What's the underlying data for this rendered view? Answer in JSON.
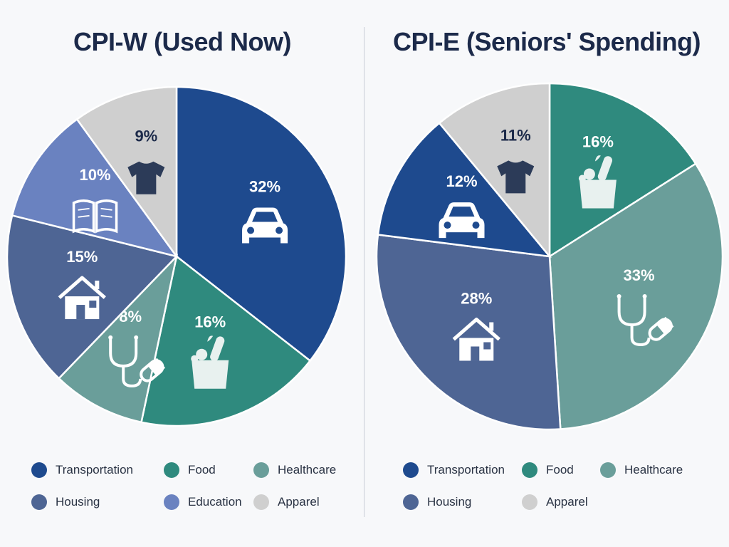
{
  "colors": {
    "Transportation": "#1e4a8e",
    "Food": "#2f8a7e",
    "Healthcare": "#6a9e9a",
    "Housing": "#4e6594",
    "Education": "#6a82c0",
    "Apparel": "#cfcfcf"
  },
  "chart_data": [
    {
      "type": "pie",
      "title": "CPI-W (Used Now)",
      "slices": [
        {
          "name": "Transportation",
          "value": 32,
          "label": "32%",
          "icon": "car-icon"
        },
        {
          "name": "Food",
          "value": 16,
          "label": "16%",
          "icon": "grocery-bag-icon"
        },
        {
          "name": "Healthcare",
          "value": 8,
          "label": "8%",
          "icon": "stethoscope-pill-icon"
        },
        {
          "name": "Housing",
          "value": 15,
          "label": "15%",
          "icon": "house-icon"
        },
        {
          "name": "Education",
          "value": 10,
          "label": "10%",
          "icon": "book-icon"
        },
        {
          "name": "Apparel",
          "value": 9,
          "label": "9%",
          "icon": "tshirt-icon"
        }
      ],
      "legend": [
        "Transportation",
        "Food",
        "Healthcare",
        "Housing",
        "Education",
        "Apparel"
      ],
      "legend_position": "bottom"
    },
    {
      "type": "pie",
      "title": "CPI-E (Seniors' Spending)",
      "slices": [
        {
          "name": "Food",
          "value": 16,
          "label": "16%",
          "icon": "grocery-bag-icon"
        },
        {
          "name": "Healthcare",
          "value": 33,
          "label": "33%",
          "icon": "stethoscope-pill-icon"
        },
        {
          "name": "Housing",
          "value": 28,
          "label": "28%",
          "icon": "house-icon"
        },
        {
          "name": "Transportation",
          "value": 12,
          "label": "12%",
          "icon": "car-icon"
        },
        {
          "name": "Apparel",
          "value": 11,
          "label": "11%",
          "icon": "tshirt-icon"
        }
      ],
      "legend": [
        "Transportation",
        "Food",
        "Healthcare",
        "Housing",
        "Apparel"
      ],
      "legend_position": "bottom"
    }
  ]
}
